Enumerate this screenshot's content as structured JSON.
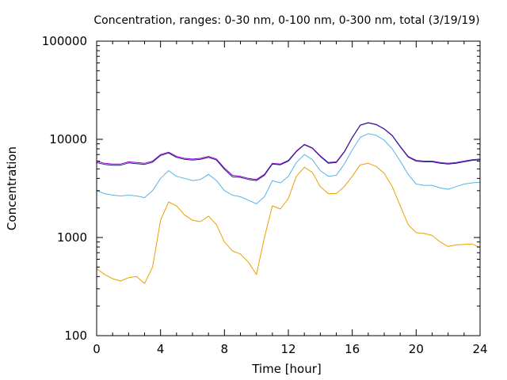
{
  "chart_data": {
    "type": "line",
    "title": "Concentration, ranges: 0-30 nm, 0-100 nm, 0-300 nm, total (3/19/19)",
    "xlabel": "Time [hour]",
    "ylabel": "Concentration",
    "xlim": [
      0,
      24
    ],
    "ylim": [
      100,
      100000
    ],
    "yscale": "log",
    "grid": false,
    "legend": "none",
    "x_ticks": [
      0,
      4,
      8,
      12,
      16,
      20,
      24
    ],
    "x_tick_labels": [
      "0",
      "4",
      "8",
      "12",
      "16",
      "20",
      "24"
    ],
    "y_ticks": [
      100,
      1000,
      10000,
      100000
    ],
    "y_tick_labels": [
      "100",
      "1000",
      "10000",
      "100000"
    ],
    "x": [
      0,
      0.5,
      1,
      1.5,
      2,
      2.5,
      3,
      3.5,
      4,
      4.5,
      5,
      5.5,
      6,
      6.5,
      7,
      7.5,
      8,
      8.5,
      9,
      9.5,
      10,
      10.5,
      11,
      11.5,
      12,
      12.5,
      13,
      13.5,
      14,
      14.5,
      15,
      15.5,
      16,
      16.5,
      17,
      17.5,
      18,
      18.5,
      19,
      19.5,
      20,
      20.5,
      21,
      21.5,
      22,
      22.5,
      23,
      23.5,
      24
    ],
    "series": [
      {
        "color": "#e8a000",
        "values": [
          480,
          420,
          380,
          360,
          390,
          400,
          340,
          500,
          1500,
          2300,
          2100,
          1700,
          1500,
          1450,
          1650,
          1350,
          900,
          730,
          680,
          560,
          420,
          1000,
          2100,
          1950,
          2500,
          4200,
          5200,
          4600,
          3300,
          2800,
          2800,
          3300,
          4200,
          5500,
          5700,
          5300,
          4500,
          3300,
          2100,
          1350,
          1120,
          1100,
          1050,
          900,
          810,
          840,
          850,
          860,
          790
        ]
      },
      {
        "color": "#56b4e9",
        "values": [
          3000,
          2800,
          2700,
          2650,
          2700,
          2650,
          2550,
          3000,
          4000,
          4800,
          4200,
          4000,
          3800,
          3900,
          4400,
          3800,
          3000,
          2700,
          2600,
          2400,
          2200,
          2600,
          3800,
          3600,
          4200,
          5800,
          7000,
          6200,
          4800,
          4200,
          4300,
          5600,
          7800,
          10500,
          11400,
          11000,
          9800,
          8000,
          6000,
          4400,
          3500,
          3400,
          3400,
          3200,
          3100,
          3300,
          3500,
          3600,
          3650
        ]
      },
      {
        "color": "#9400d3",
        "values": [
          6000,
          5700,
          5600,
          5600,
          5900,
          5800,
          5700,
          6000,
          7000,
          7400,
          6700,
          6400,
          6300,
          6400,
          6700,
          6300,
          5100,
          4300,
          4200,
          4000,
          3900,
          4400,
          5700,
          5600,
          6100,
          7600,
          8900,
          8200,
          6800,
          5800,
          5900,
          7500,
          10500,
          14000,
          14800,
          14200,
          12800,
          11000,
          8500,
          6700,
          6100,
          6000,
          6000,
          5800,
          5700,
          5800,
          6000,
          6200,
          6300
        ]
      },
      {
        "color": "#1a237e",
        "values": [
          5800,
          5550,
          5450,
          5450,
          5750,
          5650,
          5550,
          5850,
          6850,
          7250,
          6550,
          6250,
          6150,
          6250,
          6550,
          6150,
          4950,
          4150,
          4100,
          3900,
          3800,
          4300,
          5600,
          5500,
          6000,
          7500,
          8800,
          8100,
          6700,
          5700,
          5800,
          7400,
          10400,
          13900,
          14700,
          14100,
          12700,
          10900,
          8400,
          6600,
          6000,
          5900,
          5900,
          5700,
          5600,
          5700,
          5900,
          6100,
          6200
        ]
      }
    ]
  }
}
